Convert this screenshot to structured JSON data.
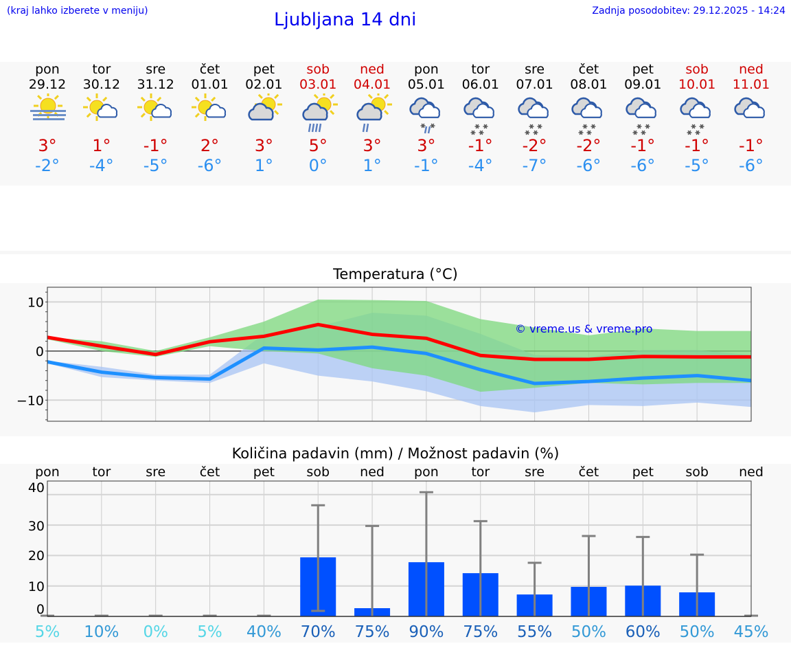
{
  "header": {
    "hint": "(kraj lahko izberete v meniju)",
    "title": "Ljubljana 14 dni",
    "updated": "Zadnja posodobitev: 29.12.2025 - 14:24"
  },
  "days": [
    {
      "name": "pon",
      "date": "29.12",
      "weekend": false,
      "icon": "sun-fog-icon",
      "max": "3°",
      "min": "-2°"
    },
    {
      "name": "tor",
      "date": "30.12",
      "weekend": false,
      "icon": "sun-small-cloud-icon",
      "max": "1°",
      "min": "-4°"
    },
    {
      "name": "sre",
      "date": "31.12",
      "weekend": false,
      "icon": "sun-small-cloud-icon",
      "max": "-1°",
      "min": "-5°"
    },
    {
      "name": "čet",
      "date": "01.01",
      "weekend": false,
      "icon": "sun-small-cloud-icon",
      "max": "2°",
      "min": "-6°"
    },
    {
      "name": "pet",
      "date": "02.01",
      "weekend": false,
      "icon": "cloud-sun-icon",
      "max": "3°",
      "min": "1°"
    },
    {
      "name": "sob",
      "date": "03.01",
      "weekend": true,
      "icon": "sun-cloud-heavy-rain-icon",
      "max": "5°",
      "min": "0°"
    },
    {
      "name": "ned",
      "date": "04.01",
      "weekend": true,
      "icon": "sun-cloud-light-rain-icon",
      "max": "3°",
      "min": "1°"
    },
    {
      "name": "pon",
      "date": "05.01",
      "weekend": false,
      "icon": "cloud-sleet-icon",
      "max": "3°",
      "min": "-1°"
    },
    {
      "name": "tor",
      "date": "06.01",
      "weekend": false,
      "icon": "cloud-snow-icon",
      "max": "-1°",
      "min": "-4°"
    },
    {
      "name": "sre",
      "date": "07.01",
      "weekend": false,
      "icon": "cloud-snow-icon",
      "max": "-2°",
      "min": "-7°"
    },
    {
      "name": "čet",
      "date": "08.01",
      "weekend": false,
      "icon": "cloud-snow-icon",
      "max": "-2°",
      "min": "-6°"
    },
    {
      "name": "pet",
      "date": "09.01",
      "weekend": false,
      "icon": "cloud-snow-icon",
      "max": "-1°",
      "min": "-6°"
    },
    {
      "name": "sob",
      "date": "10.01",
      "weekend": true,
      "icon": "cloud-snow-icon",
      "max": "-1°",
      "min": "-5°"
    },
    {
      "name": "ned",
      "date": "11.01",
      "weekend": true,
      "icon": "cloudy-icon",
      "max": "-1°",
      "min": "-6°"
    }
  ],
  "colors": {
    "weekend": "#d00000",
    "weekday": "#000000",
    "max_line": "#ff0000",
    "min_line": "#1e90ff",
    "max_band": "#a8e6a8",
    "min_band": "#a8c4f4",
    "bar": "#0050ff",
    "error": "#808080"
  },
  "chart_data": [
    {
      "type": "line",
      "title": "Temperatura (°C)",
      "ylim": [
        -14.3,
        13
      ],
      "yticks": [
        "10",
        "0",
        "−10"
      ],
      "ytick_values": [
        10,
        0,
        -10
      ],
      "grid": true,
      "watermark": "© vreme.us & vreme.pro",
      "x": [
        "29.12",
        "30.12",
        "31.12",
        "01.01",
        "02.01",
        "03.01",
        "04.01",
        "05.01",
        "06.01",
        "07.01",
        "08.01",
        "09.01",
        "10.01",
        "11.01"
      ],
      "series": [
        {
          "role": "max",
          "values": [
            2.8,
            1.0,
            -0.7,
            1.9,
            3.0,
            5.4,
            3.4,
            2.6,
            -0.9,
            -1.7,
            -1.7,
            -1.1,
            -1.2,
            -1.2
          ],
          "band_upper": [
            2.8,
            2.0,
            0.0,
            2.8,
            6.0,
            10.5,
            10.4,
            10.2,
            6.5,
            4.8,
            3.2,
            4.6,
            4.1,
            4.1
          ],
          "band_lower": [
            2.4,
            0.0,
            -1.2,
            1.0,
            0.0,
            -0.5,
            -3.5,
            -5.0,
            -8.3,
            -7.5,
            -6.5,
            -6.8,
            -6.5,
            -6.5
          ]
        },
        {
          "role": "min",
          "values": [
            -2.2,
            -4.3,
            -5.4,
            -5.7,
            0.6,
            0.2,
            0.8,
            -0.5,
            -3.8,
            -6.6,
            -6.2,
            -5.5,
            -5.0,
            -6.0
          ],
          "band_upper": [
            -2.0,
            -3.2,
            -4.8,
            -4.8,
            3.5,
            5.0,
            7.8,
            7.2,
            3.5,
            -0.8,
            -1.2,
            0.2,
            0.2,
            -0.8
          ],
          "band_lower": [
            -2.5,
            -5.3,
            -6.0,
            -6.5,
            -2.5,
            -5.0,
            -6.2,
            -8.2,
            -11.2,
            -12.5,
            -11.0,
            -11.2,
            -10.5,
            -11.4
          ]
        }
      ]
    },
    {
      "type": "bar",
      "title": "Količina padavin (mm) / Možnost padavin (%)",
      "ylim": [
        0,
        40
      ],
      "yticks": [
        "40",
        "30",
        "20",
        "10",
        "0"
      ],
      "grid": true,
      "categories": [
        "pon",
        "tor",
        "sre",
        "čet",
        "pet",
        "sob",
        "ned",
        "pon",
        "tor",
        "sre",
        "čet",
        "pet",
        "sob",
        "ned"
      ],
      "values": [
        0,
        0,
        0,
        0,
        0,
        19.4,
        2.7,
        17.8,
        14.2,
        7.2,
        9.7,
        10.1,
        7.9,
        0
      ],
      "error_low": [
        0,
        0,
        0,
        0,
        0,
        1.8,
        0,
        0,
        0,
        0,
        0,
        0,
        0,
        0
      ],
      "error_high": [
        0,
        0,
        0,
        0,
        0,
        36.5,
        29.7,
        40.8,
        31.3,
        17.6,
        26.4,
        26.1,
        20.3,
        0
      ],
      "probability": [
        "5%",
        "10%",
        "0%",
        "5%",
        "40%",
        "70%",
        "75%",
        "90%",
        "75%",
        "55%",
        "50%",
        "60%",
        "50%",
        "45%"
      ]
    }
  ]
}
